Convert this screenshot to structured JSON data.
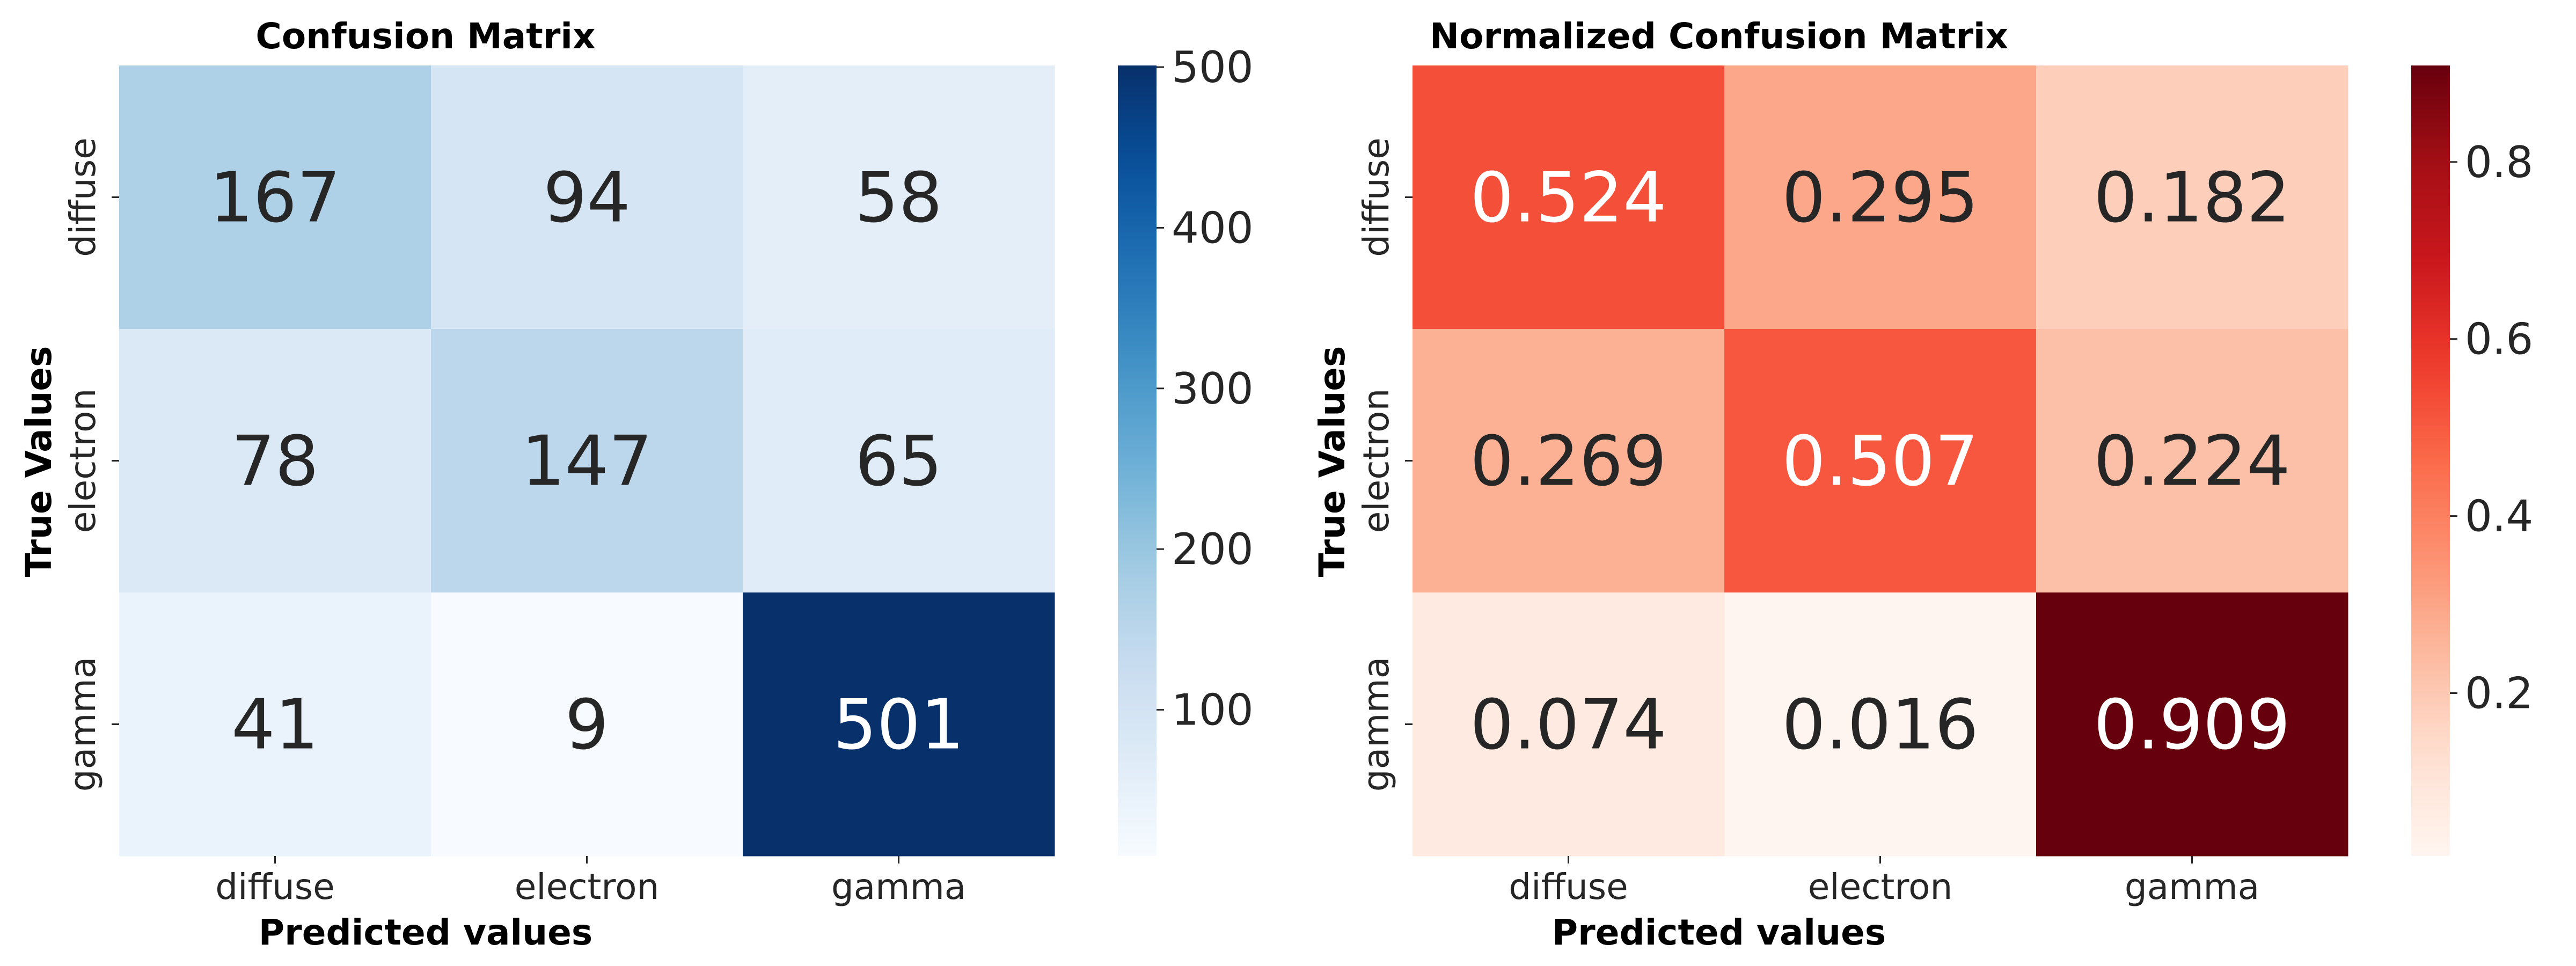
{
  "chart_data": [
    {
      "type": "heatmap",
      "title": "Confusion Matrix",
      "xlabel": "Predicted values",
      "ylabel": "True Values",
      "x_categories": [
        "diffuse",
        "electron",
        "gamma"
      ],
      "y_categories": [
        "diffuse",
        "electron",
        "gamma"
      ],
      "values": [
        [
          167,
          94,
          58
        ],
        [
          78,
          147,
          65
        ],
        [
          41,
          9,
          501
        ]
      ],
      "value_labels": [
        [
          "167",
          "94",
          "58"
        ],
        [
          "78",
          "147",
          "65"
        ],
        [
          "41",
          "9",
          "501"
        ]
      ],
      "colormap": "Blues",
      "colorbar": {
        "range": [
          9,
          501
        ],
        "ticks": [
          100,
          200,
          300,
          400,
          500
        ],
        "tick_labels": [
          "100",
          "200",
          "300",
          "400",
          "500"
        ]
      }
    },
    {
      "type": "heatmap",
      "title": "Normalized Confusion Matrix",
      "xlabel": "Predicted values",
      "ylabel": "True Values",
      "x_categories": [
        "diffuse",
        "electron",
        "gamma"
      ],
      "y_categories": [
        "diffuse",
        "electron",
        "gamma"
      ],
      "values": [
        [
          0.524,
          0.295,
          0.182
        ],
        [
          0.269,
          0.507,
          0.224
        ],
        [
          0.074,
          0.016,
          0.909
        ]
      ],
      "value_labels": [
        [
          "0.524",
          "0.295",
          "0.182"
        ],
        [
          "0.269",
          "0.507",
          "0.224"
        ],
        [
          "0.074",
          "0.016",
          "0.909"
        ]
      ],
      "colormap": "Reds",
      "colorbar": {
        "range": [
          0.016,
          0.909
        ],
        "ticks": [
          0.2,
          0.4,
          0.6,
          0.8
        ],
        "tick_labels": [
          "0.2",
          "0.4",
          "0.6",
          "0.8"
        ]
      }
    }
  ]
}
